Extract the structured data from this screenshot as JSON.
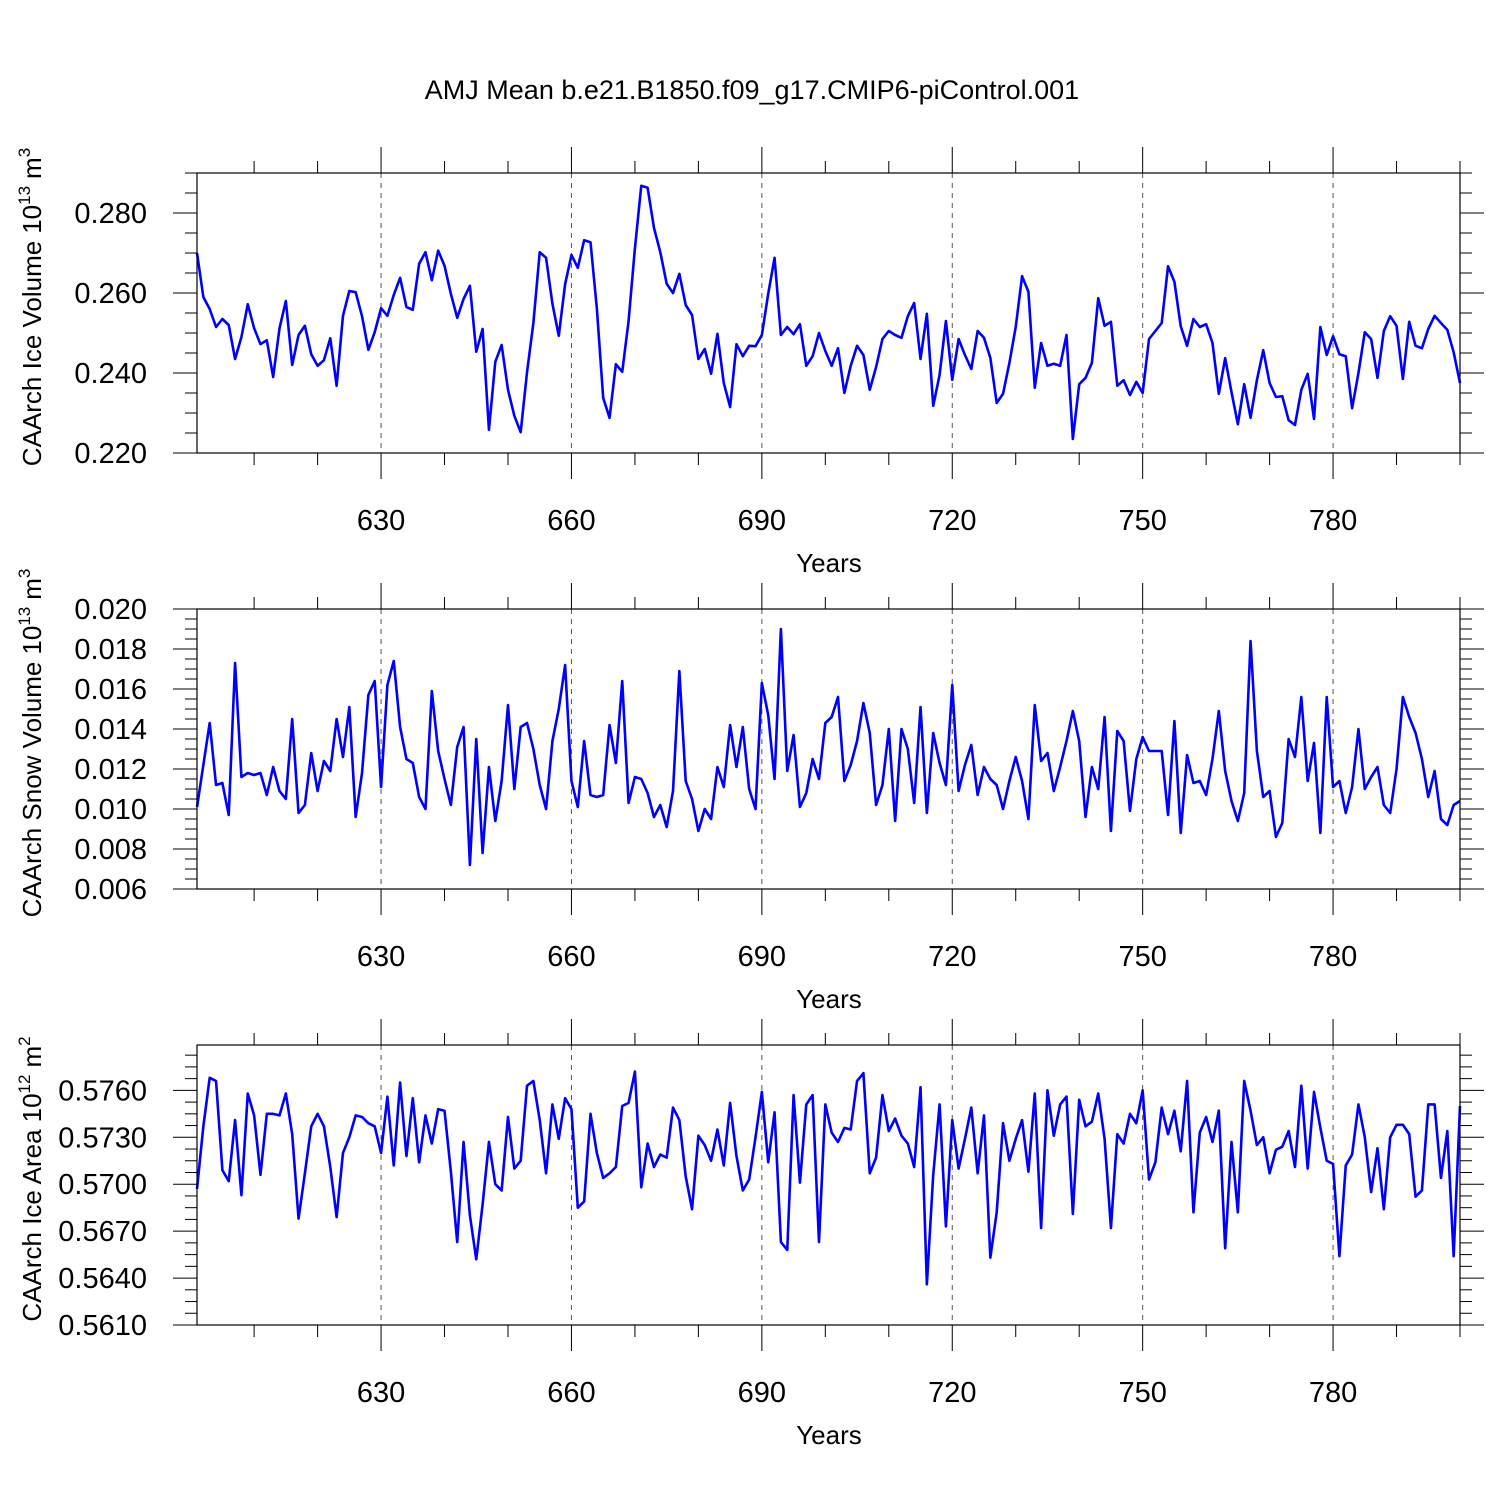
{
  "title": "AMJ Mean b.e21.B1850.f09_g17.CMIP6-piControl.001",
  "line_color": "#0000ff",
  "chart_data": [
    {
      "type": "line",
      "ylabel": "CAArch Ice Volume",
      "yunit_base": "10",
      "yunit_exp": "13",
      "yunit_unit": "m",
      "yunit_unit_exp": "3",
      "xlabel": "Years",
      "xlim": [
        601,
        800
      ],
      "ylim": [
        0.22,
        0.29
      ],
      "xticks": [
        630,
        660,
        690,
        720,
        750,
        780
      ],
      "xtick_labels": [
        "630",
        "660",
        "690",
        "720",
        "750",
        "780"
      ],
      "yticks": [
        0.22,
        0.24,
        0.26,
        0.28
      ],
      "ytick_labels": [
        "0.220",
        "0.240",
        "0.260",
        "0.280"
      ],
      "series": [
        {
          "name": "CAArch Ice Volume",
          "start_year": 601,
          "values": [
            0.27,
            0.259,
            0.256,
            0.2515,
            0.2535,
            0.252,
            0.2435,
            0.249,
            0.2572,
            0.2512,
            0.2472,
            0.2482,
            0.239,
            0.2512,
            0.258,
            0.242,
            0.2495,
            0.2518,
            0.2447,
            0.2418,
            0.2432,
            0.2487,
            0.2368,
            0.2543,
            0.2605,
            0.2602,
            0.2542,
            0.2458,
            0.2502,
            0.2562,
            0.2543,
            0.2595,
            0.2638,
            0.2565,
            0.2558,
            0.2673,
            0.2702,
            0.2632,
            0.2706,
            0.2668,
            0.2598,
            0.2538,
            0.2585,
            0.2618,
            0.2453,
            0.251,
            0.2258,
            0.2428,
            0.247,
            0.2358,
            0.2293,
            0.2252,
            0.2402,
            0.2525,
            0.2702,
            0.2688,
            0.2573,
            0.2493,
            0.2622,
            0.2695,
            0.2663,
            0.2732,
            0.2727,
            0.2562,
            0.2338,
            0.2288,
            0.2422,
            0.2403,
            0.253,
            0.2712,
            0.2868,
            0.2863,
            0.2763,
            0.2702,
            0.2623,
            0.26,
            0.2648,
            0.257,
            0.2545,
            0.2435,
            0.246,
            0.2398,
            0.2498,
            0.2375,
            0.2315,
            0.2472,
            0.2442,
            0.2468,
            0.2467,
            0.2495,
            0.2598,
            0.2688,
            0.2495,
            0.2515,
            0.2497,
            0.2522,
            0.2418,
            0.2442,
            0.25,
            0.2455,
            0.2418,
            0.2462,
            0.235,
            0.2418,
            0.2468,
            0.2445,
            0.2358,
            0.2415,
            0.2485,
            0.2505,
            0.2495,
            0.2488,
            0.2542,
            0.2575,
            0.2435,
            0.2548,
            0.2318,
            0.2395,
            0.253,
            0.2383,
            0.2485,
            0.2445,
            0.241,
            0.2505,
            0.2488,
            0.2438,
            0.2325,
            0.2348,
            0.2425,
            0.2515,
            0.2642,
            0.2603,
            0.2363,
            0.2475,
            0.2418,
            0.2423,
            0.2418,
            0.2495,
            0.2235,
            0.2372,
            0.2388,
            0.2425,
            0.2587,
            0.2518,
            0.2528,
            0.2368,
            0.2382,
            0.2345,
            0.2378,
            0.235,
            0.2485,
            0.2505,
            0.2525,
            0.2667,
            0.2628,
            0.2517,
            0.2468,
            0.2535,
            0.2515,
            0.2522,
            0.2475,
            0.2348,
            0.2437,
            0.2352,
            0.2272,
            0.2372,
            0.2288,
            0.2382,
            0.2457,
            0.2375,
            0.234,
            0.2342,
            0.2282,
            0.227,
            0.2358,
            0.2398,
            0.2285,
            0.2515,
            0.2445,
            0.2492,
            0.2447,
            0.2442,
            0.2312,
            0.24,
            0.2502,
            0.2485,
            0.2388,
            0.2505,
            0.2542,
            0.2518,
            0.2385,
            0.2528,
            0.2468,
            0.2462,
            0.251,
            0.2543,
            0.2525,
            0.2508,
            0.2452,
            0.2375
          ]
        }
      ]
    },
    {
      "type": "line",
      "ylabel": "CAArch Snow Volume",
      "yunit_base": "10",
      "yunit_exp": "13",
      "yunit_unit": "m",
      "yunit_unit_exp": "3",
      "xlabel": "Years",
      "xlim": [
        601,
        800
      ],
      "ylim": [
        0.006,
        0.02
      ],
      "xticks": [
        630,
        660,
        690,
        720,
        750,
        780
      ],
      "xtick_labels": [
        "630",
        "660",
        "690",
        "720",
        "750",
        "780"
      ],
      "yticks": [
        0.006,
        0.008,
        0.01,
        0.012,
        0.014,
        0.016,
        0.018,
        0.02
      ],
      "ytick_labels": [
        "0.006",
        "0.008",
        "0.010",
        "0.012",
        "0.014",
        "0.016",
        "0.018",
        "0.020"
      ],
      "series": [
        {
          "name": "CAArch Snow Volume",
          "start_year": 601,
          "values": [
            0.0101,
            0.0122,
            0.0143,
            0.0112,
            0.0113,
            0.0097,
            0.0173,
            0.0116,
            0.0118,
            0.0117,
            0.0118,
            0.0107,
            0.0121,
            0.0109,
            0.0105,
            0.0145,
            0.0098,
            0.0102,
            0.0128,
            0.0109,
            0.0124,
            0.0119,
            0.0145,
            0.0126,
            0.0151,
            0.0096,
            0.0118,
            0.0157,
            0.0164,
            0.0111,
            0.0162,
            0.0174,
            0.0141,
            0.0125,
            0.0123,
            0.0106,
            0.01,
            0.0159,
            0.0129,
            0.0115,
            0.0102,
            0.0131,
            0.0141,
            0.0072,
            0.0135,
            0.0078,
            0.0121,
            0.0094,
            0.0114,
            0.0152,
            0.011,
            0.0141,
            0.0143,
            0.013,
            0.0112,
            0.01,
            0.0134,
            0.015,
            0.0172,
            0.0114,
            0.0101,
            0.0134,
            0.0107,
            0.0106,
            0.0107,
            0.0142,
            0.0123,
            0.0164,
            0.0103,
            0.0116,
            0.0115,
            0.0108,
            0.0096,
            0.0102,
            0.0091,
            0.0109,
            0.0169,
            0.0114,
            0.0105,
            0.0089,
            0.01,
            0.0095,
            0.0121,
            0.0111,
            0.0142,
            0.0121,
            0.0141,
            0.011,
            0.01,
            0.0163,
            0.0147,
            0.0115,
            0.019,
            0.0119,
            0.0137,
            0.0101,
            0.0108,
            0.0125,
            0.0115,
            0.0143,
            0.0146,
            0.0156,
            0.0114,
            0.0122,
            0.0134,
            0.0153,
            0.0138,
            0.0102,
            0.0112,
            0.014,
            0.0094,
            0.014,
            0.013,
            0.0103,
            0.0151,
            0.0098,
            0.0138,
            0.0123,
            0.0112,
            0.0162,
            0.0109,
            0.0122,
            0.0132,
            0.0107,
            0.0121,
            0.0115,
            0.0112,
            0.01,
            0.0114,
            0.0126,
            0.0114,
            0.0095,
            0.0152,
            0.0124,
            0.0128,
            0.0109,
            0.0121,
            0.0134,
            0.0149,
            0.0134,
            0.0096,
            0.0121,
            0.011,
            0.0146,
            0.0089,
            0.0139,
            0.0134,
            0.0099,
            0.0125,
            0.0136,
            0.0129,
            0.0129,
            0.0129,
            0.0097,
            0.0144,
            0.0088,
            0.0127,
            0.0113,
            0.0114,
            0.0107,
            0.0125,
            0.0149,
            0.0119,
            0.0104,
            0.0094,
            0.0108,
            0.0184,
            0.0129,
            0.0106,
            0.0109,
            0.0086,
            0.0093,
            0.0135,
            0.0126,
            0.0156,
            0.0114,
            0.0133,
            0.0088,
            0.0156,
            0.0111,
            0.0114,
            0.0098,
            0.0111,
            0.014,
            0.011,
            0.0116,
            0.0121,
            0.0102,
            0.0098,
            0.012,
            0.0156,
            0.0146,
            0.0138,
            0.0125,
            0.0106,
            0.0119,
            0.0095,
            0.0092,
            0.0102,
            0.0104
          ]
        }
      ]
    },
    {
      "type": "line",
      "ylabel": "CAArch Ice Area",
      "yunit_base": "10",
      "yunit_exp": "12",
      "yunit_unit": "m",
      "yunit_unit_exp": "2",
      "xlabel": "Years",
      "xlim": [
        601,
        800
      ],
      "ylim": [
        0.561,
        0.5789
      ],
      "xticks": [
        630,
        660,
        690,
        720,
        750,
        780
      ],
      "xtick_labels": [
        "630",
        "660",
        "690",
        "720",
        "750",
        "780"
      ],
      "yticks": [
        0.561,
        0.564,
        0.567,
        0.57,
        0.573,
        0.576
      ],
      "ytick_labels": [
        "0.5610",
        "0.5640",
        "0.5670",
        "0.5700",
        "0.5730",
        "0.5760"
      ],
      "series": [
        {
          "name": "CAArch Ice Area",
          "start_year": 601,
          "values": [
            0.5697,
            0.5737,
            0.5768,
            0.5766,
            0.5709,
            0.5702,
            0.5741,
            0.5693,
            0.5758,
            0.5744,
            0.5706,
            0.5745,
            0.5745,
            0.5744,
            0.5758,
            0.5732,
            0.5678,
            0.5707,
            0.5737,
            0.5745,
            0.5737,
            0.5711,
            0.5679,
            0.572,
            0.573,
            0.5744,
            0.5743,
            0.5739,
            0.5737,
            0.572,
            0.5756,
            0.5712,
            0.5765,
            0.5718,
            0.5755,
            0.5714,
            0.5744,
            0.5726,
            0.5748,
            0.5747,
            0.5708,
            0.5663,
            0.5727,
            0.568,
            0.5652,
            0.5687,
            0.5727,
            0.57,
            0.5696,
            0.5743,
            0.571,
            0.5715,
            0.5763,
            0.5766,
            0.5741,
            0.5707,
            0.5751,
            0.5729,
            0.5755,
            0.5748,
            0.5685,
            0.5689,
            0.5745,
            0.572,
            0.5704,
            0.5707,
            0.5711,
            0.575,
            0.5752,
            0.5772,
            0.5698,
            0.5726,
            0.5711,
            0.5719,
            0.5717,
            0.5749,
            0.5741,
            0.5705,
            0.5684,
            0.5731,
            0.5725,
            0.5715,
            0.5735,
            0.5712,
            0.5752,
            0.5718,
            0.5696,
            0.5703,
            0.573,
            0.5759,
            0.5714,
            0.5746,
            0.5663,
            0.5658,
            0.5757,
            0.5701,
            0.5751,
            0.5757,
            0.5663,
            0.5751,
            0.5733,
            0.5727,
            0.5736,
            0.5735,
            0.5766,
            0.5771,
            0.5707,
            0.5717,
            0.5757,
            0.5734,
            0.5742,
            0.5731,
            0.5726,
            0.5711,
            0.5762,
            0.5636,
            0.5706,
            0.5751,
            0.5673,
            0.5741,
            0.571,
            0.5729,
            0.5749,
            0.5707,
            0.5744,
            0.5653,
            0.5682,
            0.5739,
            0.5715,
            0.5729,
            0.5741,
            0.5708,
            0.5758,
            0.5672,
            0.576,
            0.5731,
            0.5751,
            0.5756,
            0.5681,
            0.5754,
            0.5737,
            0.574,
            0.5758,
            0.5729,
            0.5672,
            0.5732,
            0.5726,
            0.5745,
            0.5739,
            0.576,
            0.5703,
            0.5714,
            0.5749,
            0.5732,
            0.5747,
            0.5721,
            0.5766,
            0.5682,
            0.5733,
            0.5743,
            0.5727,
            0.5747,
            0.5659,
            0.5727,
            0.5682,
            0.5766,
            0.5747,
            0.5725,
            0.573,
            0.5707,
            0.5722,
            0.5724,
            0.5734,
            0.5711,
            0.5763,
            0.571,
            0.5759,
            0.5736,
            0.5715,
            0.5713,
            0.5654,
            0.5712,
            0.5719,
            0.5751,
            0.573,
            0.5695,
            0.5723,
            0.5684,
            0.573,
            0.5738,
            0.5738,
            0.5732,
            0.5692,
            0.5696,
            0.5751,
            0.5751,
            0.5704,
            0.5734,
            0.5654,
            0.575
          ]
        }
      ]
    }
  ]
}
